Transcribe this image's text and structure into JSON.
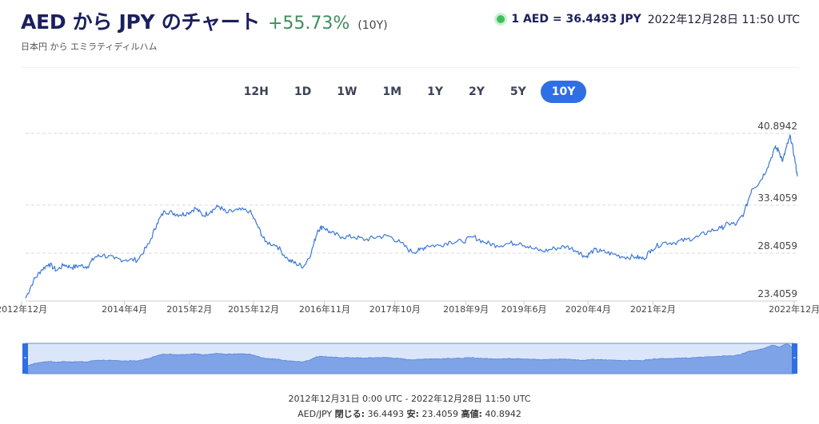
{
  "header": {
    "title": "AED から JPY のチャート",
    "change": "+55.73%",
    "period": "(10Y)",
    "subtitle": "日本円 から エミラティディルハム",
    "rate": "1 AED = 36.4493 JPY",
    "rate_time": "2022年12月28日 11:50 UTC"
  },
  "tabs": [
    {
      "label": "12H"
    },
    {
      "label": "1D"
    },
    {
      "label": "1W"
    },
    {
      "label": "1M"
    },
    {
      "label": "1Y"
    },
    {
      "label": "2Y"
    },
    {
      "label": "5Y"
    },
    {
      "label": "10Y",
      "active": true
    }
  ],
  "footer": {
    "range": "2012年12月31日 0:00 UTC - 2022年12月28日 11:50 UTC",
    "pair": "AED/JPY",
    "close_label": "閉じる:",
    "close_value": "36.4493",
    "low_label": "安:",
    "low_value": "23.4059",
    "high_label": "高値:",
    "high_value": "40.8942"
  },
  "colors": {
    "line": "#3a78d8",
    "accent": "#2f6fe4",
    "positive": "#3e8e5b",
    "navigator_fill": "#7ea3e6",
    "navigator_bg": "#dbe6fb"
  },
  "chart_data": {
    "type": "line",
    "y_ticks": [
      "40.8942",
      "33.4059",
      "28.4059",
      "23.4059"
    ],
    "y_tick_values": [
      40.8942,
      33.4059,
      28.4059,
      23.4059
    ],
    "ylim": [
      23.4059,
      40.8942
    ],
    "x_ticks": [
      {
        "label": "2012年12月",
        "t": 2012.95
      },
      {
        "label": "2014年4月",
        "t": 2014.28
      },
      {
        "label": "2015年2月",
        "t": 2015.12
      },
      {
        "label": "2015年12月",
        "t": 2015.95
      },
      {
        "label": "2016年11月",
        "t": 2016.87
      },
      {
        "label": "2017年10月",
        "t": 2017.78
      },
      {
        "label": "2018年9月",
        "t": 2018.7
      },
      {
        "label": "2019年6月",
        "t": 2019.45
      },
      {
        "label": "2020年4月",
        "t": 2020.28
      },
      {
        "label": "2021年2月",
        "t": 2021.12
      },
      {
        "label": "2022年12月",
        "t": 2022.95
      }
    ],
    "xlim": [
      2013.0,
      2022.99
    ],
    "series": [
      {
        "x": [
          2013.0,
          2013.1,
          2013.2,
          2013.3,
          2013.4,
          2013.5,
          2013.6,
          2013.7,
          2013.8,
          2013.9,
          2014.0,
          2014.15,
          2014.3,
          2014.45,
          2014.6,
          2014.7,
          2014.8,
          2014.9,
          2015.0,
          2015.1,
          2015.2,
          2015.3,
          2015.4,
          2015.5,
          2015.6,
          2015.75,
          2015.9,
          2016.0,
          2016.1,
          2016.25,
          2016.4,
          2016.5,
          2016.6,
          2016.7,
          2016.78,
          2016.85,
          2016.95,
          2017.1,
          2017.25,
          2017.4,
          2017.55,
          2017.7,
          2017.85,
          2018.0,
          2018.1,
          2018.2,
          2018.35,
          2018.5,
          2018.65,
          2018.8,
          2018.95,
          2019.1,
          2019.25,
          2019.4,
          2019.55,
          2019.7,
          2019.85,
          2020.0,
          2020.15,
          2020.25,
          2020.35,
          2020.45,
          2020.6,
          2020.75,
          2020.9,
          2021.0,
          2021.1,
          2021.25,
          2021.4,
          2021.55,
          2021.7,
          2021.85,
          2022.0,
          2022.1,
          2022.2,
          2022.3,
          2022.4,
          2022.5,
          2022.6,
          2022.7,
          2022.75,
          2022.8,
          2022.85,
          2022.9,
          2022.95,
          2022.99
        ],
        "y": [
          23.7,
          25.5,
          26.6,
          27.3,
          26.6,
          27.2,
          26.9,
          27.1,
          27.0,
          28.0,
          28.2,
          27.8,
          27.7,
          27.7,
          29.4,
          31.5,
          32.8,
          32.6,
          32.4,
          32.6,
          33.1,
          32.3,
          32.8,
          33.3,
          32.6,
          32.9,
          32.8,
          31.3,
          29.6,
          29.2,
          27.7,
          27.3,
          27.0,
          28.5,
          30.8,
          31.2,
          30.5,
          30.1,
          30.1,
          29.8,
          30.1,
          30.2,
          29.5,
          28.5,
          28.7,
          29.2,
          29.2,
          29.6,
          29.6,
          30.1,
          29.5,
          29.2,
          29.4,
          29.5,
          28.9,
          28.6,
          28.9,
          29.1,
          28.6,
          28.0,
          28.7,
          28.6,
          28.3,
          28.0,
          28.0,
          27.8,
          28.8,
          29.5,
          29.5,
          29.8,
          30.1,
          30.7,
          31.0,
          31.5,
          31.4,
          32.6,
          35.1,
          35.8,
          37.3,
          39.4,
          39.1,
          38.0,
          39.5,
          40.6,
          38.5,
          36.4
        ]
      }
    ]
  }
}
